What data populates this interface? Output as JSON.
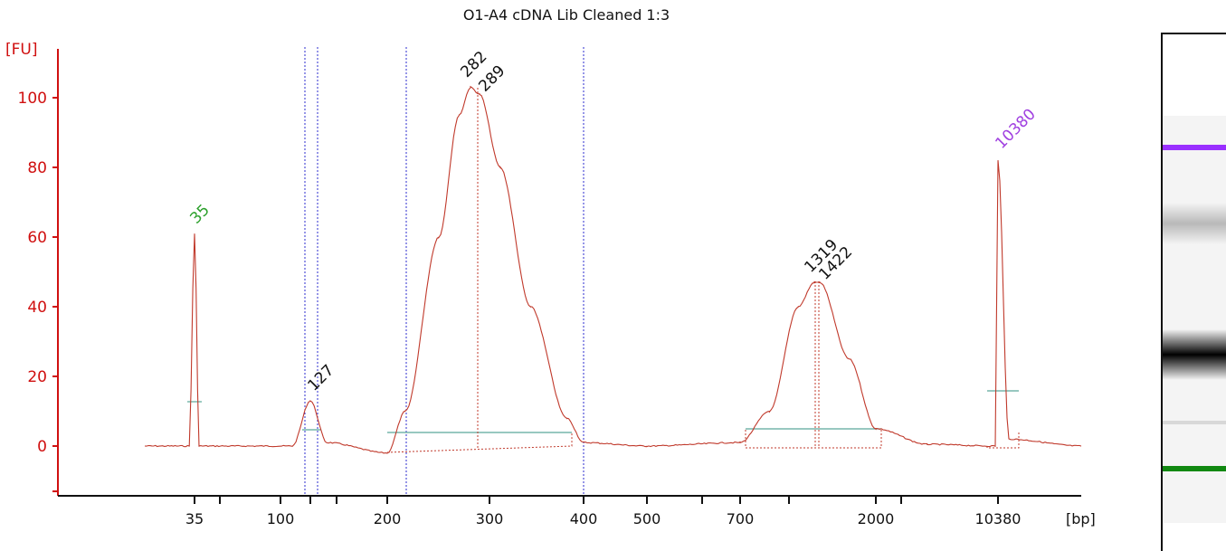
{
  "chart_data": {
    "type": "line",
    "title": "O1-A4 cDNA Lib Cleaned 1:3",
    "ylabel": "[FU]",
    "xlabel": "[bp]",
    "ylim": [
      -13,
      115
    ],
    "y_ticks": [
      0,
      20,
      40,
      60,
      80,
      100
    ],
    "x_tick_labels": [
      "35",
      "100",
      "200",
      "300",
      "400",
      "500",
      "700",
      "2000",
      "10380"
    ],
    "x_scale": "ladder (bp, nonlinear)",
    "peak_labels": [
      {
        "text": "35",
        "bp": 35,
        "fu": 61,
        "color": "#2ca02c"
      },
      {
        "text": "127",
        "bp": 127,
        "fu": 13,
        "color": "#111111"
      },
      {
        "text": "282",
        "bp": 282,
        "fu": 103,
        "color": "#111111"
      },
      {
        "text": "289",
        "bp": 289,
        "fu": 101,
        "color": "#111111"
      },
      {
        "text": "1319",
        "bp": 1319,
        "fu": 47,
        "color": "#111111"
      },
      {
        "text": "1422",
        "bp": 1422,
        "fu": 47,
        "color": "#111111"
      },
      {
        "text": "10380",
        "bp": 10380,
        "fu": 82,
        "color": "#a040e0"
      }
    ],
    "series": [
      {
        "values": [
          {
            "bp": 20,
            "fu": 0
          },
          {
            "bp": 33,
            "fu": 0
          },
          {
            "bp": 35,
            "fu": 61
          },
          {
            "bp": 37,
            "fu": 0
          },
          {
            "bp": 110,
            "fu": 0
          },
          {
            "bp": 127,
            "fu": 13
          },
          {
            "bp": 140,
            "fu": 1
          },
          {
            "bp": 200,
            "fu": -2
          },
          {
            "bp": 220,
            "fu": 10
          },
          {
            "bp": 250,
            "fu": 60
          },
          {
            "bp": 270,
            "fu": 95
          },
          {
            "bp": 282,
            "fu": 103
          },
          {
            "bp": 289,
            "fu": 101
          },
          {
            "bp": 310,
            "fu": 80
          },
          {
            "bp": 340,
            "fu": 40
          },
          {
            "bp": 380,
            "fu": 8
          },
          {
            "bp": 400,
            "fu": 1
          },
          {
            "bp": 500,
            "fu": 0
          },
          {
            "bp": 700,
            "fu": 1
          },
          {
            "bp": 900,
            "fu": 10
          },
          {
            "bp": 1150,
            "fu": 40
          },
          {
            "bp": 1319,
            "fu": 47
          },
          {
            "bp": 1422,
            "fu": 47
          },
          {
            "bp": 1700,
            "fu": 25
          },
          {
            "bp": 2000,
            "fu": 5
          },
          {
            "bp": 4000,
            "fu": 0.5
          },
          {
            "bp": 10000,
            "fu": 0
          },
          {
            "bp": 10380,
            "fu": 82
          },
          {
            "bp": 11000,
            "fu": 2
          },
          {
            "bp": 16000,
            "fu": 0
          }
        ]
      }
    ],
    "gel_bands": [
      {
        "color": "#9a30ff",
        "role": "upper marker"
      },
      {
        "color": "#888888",
        "role": "band"
      },
      {
        "color": "#000000",
        "role": "band"
      },
      {
        "color": "#d8d8d8",
        "role": "band"
      },
      {
        "color": "#118811",
        "role": "lower marker"
      }
    ],
    "grid": false
  }
}
